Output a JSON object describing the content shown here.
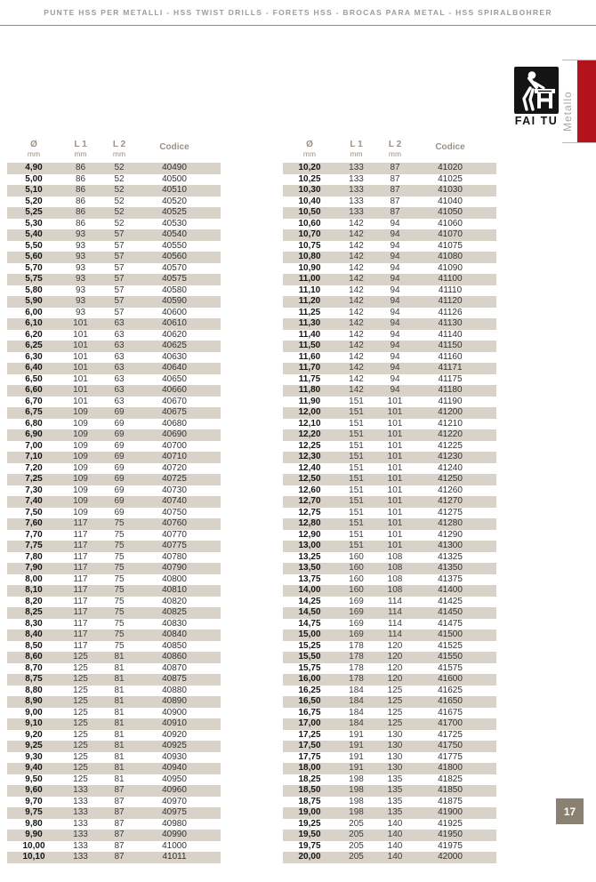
{
  "header": {
    "title": "PUNTE HSS PER METALLI - HSS TWIST DRILLS - FORETS HSS - BROCAS PARA METAL - HSS SPIRALBOHRER"
  },
  "logo": {
    "brand": "FAI TU"
  },
  "side_tab": {
    "label": "Metallo"
  },
  "page_number": "17",
  "columns": {
    "diameter": "Ø",
    "l1": "L 1",
    "l2": "L 2",
    "unit": "mm",
    "codice": "Codice"
  },
  "colors": {
    "accent_red": "#b3141b",
    "stripe_beige": "#d8d2c8",
    "page_badge": "#8b8173",
    "header_text": "#9c9183"
  },
  "tables": {
    "left": {
      "rows": [
        [
          "4,90",
          "86",
          "52",
          "40490"
        ],
        [
          "5,00",
          "86",
          "52",
          "40500"
        ],
        [
          "5,10",
          "86",
          "52",
          "40510"
        ],
        [
          "5,20",
          "86",
          "52",
          "40520"
        ],
        [
          "5,25",
          "86",
          "52",
          "40525"
        ],
        [
          "5,30",
          "86",
          "52",
          "40530"
        ],
        [
          "5,40",
          "93",
          "57",
          "40540"
        ],
        [
          "5,50",
          "93",
          "57",
          "40550"
        ],
        [
          "5,60",
          "93",
          "57",
          "40560"
        ],
        [
          "5,70",
          "93",
          "57",
          "40570"
        ],
        [
          "5,75",
          "93",
          "57",
          "40575"
        ],
        [
          "5,80",
          "93",
          "57",
          "40580"
        ],
        [
          "5,90",
          "93",
          "57",
          "40590"
        ],
        [
          "6,00",
          "93",
          "57",
          "40600"
        ],
        [
          "6,10",
          "101",
          "63",
          "40610"
        ],
        [
          "6,20",
          "101",
          "63",
          "40620"
        ],
        [
          "6,25",
          "101",
          "63",
          "40625"
        ],
        [
          "6,30",
          "101",
          "63",
          "40630"
        ],
        [
          "6,40",
          "101",
          "63",
          "40640"
        ],
        [
          "6,50",
          "101",
          "63",
          "40650"
        ],
        [
          "6,60",
          "101",
          "63",
          "40660"
        ],
        [
          "6,70",
          "101",
          "63",
          "40670"
        ],
        [
          "6,75",
          "109",
          "69",
          "40675"
        ],
        [
          "6,80",
          "109",
          "69",
          "40680"
        ],
        [
          "6,90",
          "109",
          "69",
          "40690"
        ],
        [
          "7,00",
          "109",
          "69",
          "40700"
        ],
        [
          "7,10",
          "109",
          "69",
          "40710"
        ],
        [
          "7,20",
          "109",
          "69",
          "40720"
        ],
        [
          "7,25",
          "109",
          "69",
          "40725"
        ],
        [
          "7,30",
          "109",
          "69",
          "40730"
        ],
        [
          "7,40",
          "109",
          "69",
          "40740"
        ],
        [
          "7,50",
          "109",
          "69",
          "40750"
        ],
        [
          "7,60",
          "117",
          "75",
          "40760"
        ],
        [
          "7,70",
          "117",
          "75",
          "40770"
        ],
        [
          "7,75",
          "117",
          "75",
          "40775"
        ],
        [
          "7,80",
          "117",
          "75",
          "40780"
        ],
        [
          "7,90",
          "117",
          "75",
          "40790"
        ],
        [
          "8,00",
          "117",
          "75",
          "40800"
        ],
        [
          "8,10",
          "117",
          "75",
          "40810"
        ],
        [
          "8,20",
          "117",
          "75",
          "40820"
        ],
        [
          "8,25",
          "117",
          "75",
          "40825"
        ],
        [
          "8,30",
          "117",
          "75",
          "40830"
        ],
        [
          "8,40",
          "117",
          "75",
          "40840"
        ],
        [
          "8,50",
          "117",
          "75",
          "40850"
        ],
        [
          "8,60",
          "125",
          "81",
          "40860"
        ],
        [
          "8,70",
          "125",
          "81",
          "40870"
        ],
        [
          "8,75",
          "125",
          "81",
          "40875"
        ],
        [
          "8,80",
          "125",
          "81",
          "40880"
        ],
        [
          "8,90",
          "125",
          "81",
          "40890"
        ],
        [
          "9,00",
          "125",
          "81",
          "40900"
        ],
        [
          "9,10",
          "125",
          "81",
          "40910"
        ],
        [
          "9,20",
          "125",
          "81",
          "40920"
        ],
        [
          "9,25",
          "125",
          "81",
          "40925"
        ],
        [
          "9,30",
          "125",
          "81",
          "40930"
        ],
        [
          "9,40",
          "125",
          "81",
          "40940"
        ],
        [
          "9,50",
          "125",
          "81",
          "40950"
        ],
        [
          "9,60",
          "133",
          "87",
          "40960"
        ],
        [
          "9,70",
          "133",
          "87",
          "40970"
        ],
        [
          "9,75",
          "133",
          "87",
          "40975"
        ],
        [
          "9,80",
          "133",
          "87",
          "40980"
        ],
        [
          "9,90",
          "133",
          "87",
          "40990"
        ],
        [
          "10,00",
          "133",
          "87",
          "41000"
        ],
        [
          "10,10",
          "133",
          "87",
          "41011"
        ]
      ]
    },
    "right": {
      "rows": [
        [
          "10,20",
          "133",
          "87",
          "41020"
        ],
        [
          "10,25",
          "133",
          "87",
          "41025"
        ],
        [
          "10,30",
          "133",
          "87",
          "41030"
        ],
        [
          "10,40",
          "133",
          "87",
          "41040"
        ],
        [
          "10,50",
          "133",
          "87",
          "41050"
        ],
        [
          "10,60",
          "142",
          "94",
          "41060"
        ],
        [
          "10,70",
          "142",
          "94",
          "41070"
        ],
        [
          "10,75",
          "142",
          "94",
          "41075"
        ],
        [
          "10,80",
          "142",
          "94",
          "41080"
        ],
        [
          "10,90",
          "142",
          "94",
          "41090"
        ],
        [
          "11,00",
          "142",
          "94",
          "41100"
        ],
        [
          "11,10",
          "142",
          "94",
          "41110"
        ],
        [
          "11,20",
          "142",
          "94",
          "41120"
        ],
        [
          "11,25",
          "142",
          "94",
          "41126"
        ],
        [
          "11,30",
          "142",
          "94",
          "41130"
        ],
        [
          "11,40",
          "142",
          "94",
          "41140"
        ],
        [
          "11,50",
          "142",
          "94",
          "41150"
        ],
        [
          "11,60",
          "142",
          "94",
          "41160"
        ],
        [
          "11,70",
          "142",
          "94",
          "41171"
        ],
        [
          "11,75",
          "142",
          "94",
          "41175"
        ],
        [
          "11,80",
          "142",
          "94",
          "41180"
        ],
        [
          "11,90",
          "151",
          "101",
          "41190"
        ],
        [
          "12,00",
          "151",
          "101",
          "41200"
        ],
        [
          "12,10",
          "151",
          "101",
          "41210"
        ],
        [
          "12,20",
          "151",
          "101",
          "41220"
        ],
        [
          "12,25",
          "151",
          "101",
          "41225"
        ],
        [
          "12,30",
          "151",
          "101",
          "41230"
        ],
        [
          "12,40",
          "151",
          "101",
          "41240"
        ],
        [
          "12,50",
          "151",
          "101",
          "41250"
        ],
        [
          "12,60",
          "151",
          "101",
          "41260"
        ],
        [
          "12,70",
          "151",
          "101",
          "41270"
        ],
        [
          "12,75",
          "151",
          "101",
          "41275"
        ],
        [
          "12,80",
          "151",
          "101",
          "41280"
        ],
        [
          "12,90",
          "151",
          "101",
          "41290"
        ],
        [
          "13,00",
          "151",
          "101",
          "41300"
        ],
        [
          "13,25",
          "160",
          "108",
          "41325"
        ],
        [
          "13,50",
          "160",
          "108",
          "41350"
        ],
        [
          "13,75",
          "160",
          "108",
          "41375"
        ],
        [
          "14,00",
          "160",
          "108",
          "41400"
        ],
        [
          "14,25",
          "169",
          "114",
          "41425"
        ],
        [
          "14,50",
          "169",
          "114",
          "41450"
        ],
        [
          "14,75",
          "169",
          "114",
          "41475"
        ],
        [
          "15,00",
          "169",
          "114",
          "41500"
        ],
        [
          "15,25",
          "178",
          "120",
          "41525"
        ],
        [
          "15,50",
          "178",
          "120",
          "41550"
        ],
        [
          "15,75",
          "178",
          "120",
          "41575"
        ],
        [
          "16,00",
          "178",
          "120",
          "41600"
        ],
        [
          "16,25",
          "184",
          "125",
          "41625"
        ],
        [
          "16,50",
          "184",
          "125",
          "41650"
        ],
        [
          "16,75",
          "184",
          "125",
          "41675"
        ],
        [
          "17,00",
          "184",
          "125",
          "41700"
        ],
        [
          "17,25",
          "191",
          "130",
          "41725"
        ],
        [
          "17,50",
          "191",
          "130",
          "41750"
        ],
        [
          "17,75",
          "191",
          "130",
          "41775"
        ],
        [
          "18,00",
          "191",
          "130",
          "41800"
        ],
        [
          "18,25",
          "198",
          "135",
          "41825"
        ],
        [
          "18,50",
          "198",
          "135",
          "41850"
        ],
        [
          "18,75",
          "198",
          "135",
          "41875"
        ],
        [
          "19,00",
          "198",
          "135",
          "41900"
        ],
        [
          "19,25",
          "205",
          "140",
          "41925"
        ],
        [
          "19,50",
          "205",
          "140",
          "41950"
        ],
        [
          "19,75",
          "205",
          "140",
          "41975"
        ],
        [
          "20,00",
          "205",
          "140",
          "42000"
        ]
      ]
    }
  }
}
